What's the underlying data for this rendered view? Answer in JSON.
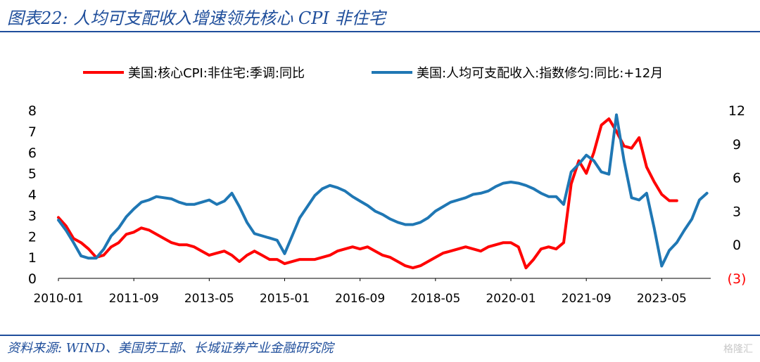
{
  "header": {
    "title": "图表22:  人均可支配收入增速领先核心 CPI 非住宅"
  },
  "footer": {
    "source": "资料来源:  WIND、美国劳工部、长城证券产业金融研究院",
    "watermark": "格隆汇"
  },
  "chart_data": {
    "type": "line",
    "legend_position": "top",
    "grid": false,
    "x_tick_labels": [
      "2010-01",
      "2011-09",
      "2013-05",
      "2015-01",
      "2016-09",
      "2018-05",
      "2020-01",
      "2021-09",
      "2023-05"
    ],
    "left_axis": {
      "ylim": [
        0,
        8
      ],
      "ticks": [
        "0",
        "1",
        "2",
        "3",
        "4",
        "5",
        "6",
        "7",
        "8"
      ]
    },
    "right_axis": {
      "ylim": [
        -3,
        12
      ],
      "ticks": [
        "(3)",
        "0",
        "3",
        "6",
        "9",
        "12"
      ],
      "negative_color": "#ff0000"
    },
    "series": [
      {
        "name": "美国:核心CPI:非住宅:季调:同比",
        "color": "#ff0000",
        "axis": "left",
        "points": [
          [
            "2010-01",
            2.9
          ],
          [
            "2010-03",
            2.5
          ],
          [
            "2010-05",
            1.9
          ],
          [
            "2010-07",
            1.7
          ],
          [
            "2010-09",
            1.4
          ],
          [
            "2010-11",
            1.0
          ],
          [
            "2011-01",
            1.1
          ],
          [
            "2011-03",
            1.5
          ],
          [
            "2011-05",
            1.7
          ],
          [
            "2011-07",
            2.1
          ],
          [
            "2011-09",
            2.2
          ],
          [
            "2011-11",
            2.4
          ],
          [
            "2012-01",
            2.3
          ],
          [
            "2012-03",
            2.1
          ],
          [
            "2012-05",
            1.9
          ],
          [
            "2012-07",
            1.7
          ],
          [
            "2012-09",
            1.6
          ],
          [
            "2012-11",
            1.6
          ],
          [
            "2013-01",
            1.5
          ],
          [
            "2013-03",
            1.3
          ],
          [
            "2013-05",
            1.1
          ],
          [
            "2013-07",
            1.2
          ],
          [
            "2013-09",
            1.3
          ],
          [
            "2013-11",
            1.1
          ],
          [
            "2014-01",
            0.8
          ],
          [
            "2014-03",
            1.1
          ],
          [
            "2014-05",
            1.3
          ],
          [
            "2014-07",
            1.1
          ],
          [
            "2014-09",
            0.9
          ],
          [
            "2014-11",
            0.9
          ],
          [
            "2015-01",
            0.7
          ],
          [
            "2015-03",
            0.8
          ],
          [
            "2015-05",
            0.9
          ],
          [
            "2015-07",
            0.9
          ],
          [
            "2015-09",
            0.9
          ],
          [
            "2015-11",
            1.0
          ],
          [
            "2016-01",
            1.1
          ],
          [
            "2016-03",
            1.3
          ],
          [
            "2016-05",
            1.4
          ],
          [
            "2016-07",
            1.5
          ],
          [
            "2016-09",
            1.4
          ],
          [
            "2016-11",
            1.5
          ],
          [
            "2017-01",
            1.3
          ],
          [
            "2017-03",
            1.1
          ],
          [
            "2017-05",
            1.0
          ],
          [
            "2017-07",
            0.8
          ],
          [
            "2017-09",
            0.6
          ],
          [
            "2017-11",
            0.5
          ],
          [
            "2018-01",
            0.6
          ],
          [
            "2018-03",
            0.8
          ],
          [
            "2018-05",
            1.0
          ],
          [
            "2018-07",
            1.2
          ],
          [
            "2018-09",
            1.3
          ],
          [
            "2018-11",
            1.4
          ],
          [
            "2019-01",
            1.5
          ],
          [
            "2019-03",
            1.4
          ],
          [
            "2019-05",
            1.3
          ],
          [
            "2019-07",
            1.5
          ],
          [
            "2019-09",
            1.6
          ],
          [
            "2019-11",
            1.7
          ],
          [
            "2020-01",
            1.7
          ],
          [
            "2020-03",
            1.5
          ],
          [
            "2020-05",
            0.5
          ],
          [
            "2020-07",
            0.9
          ],
          [
            "2020-09",
            1.4
          ],
          [
            "2020-11",
            1.5
          ],
          [
            "2021-01",
            1.4
          ],
          [
            "2021-03",
            1.7
          ],
          [
            "2021-05",
            4.5
          ],
          [
            "2021-07",
            5.6
          ],
          [
            "2021-09",
            5.0
          ],
          [
            "2021-11",
            6.0
          ],
          [
            "2022-01",
            7.3
          ],
          [
            "2022-03",
            7.6
          ],
          [
            "2022-05",
            7.0
          ],
          [
            "2022-07",
            6.3
          ],
          [
            "2022-09",
            6.2
          ],
          [
            "2022-11",
            6.7
          ],
          [
            "2023-01",
            5.3
          ],
          [
            "2023-03",
            4.6
          ],
          [
            "2023-05",
            4.0
          ],
          [
            "2023-07",
            3.7
          ],
          [
            "2023-09",
            3.7
          ]
        ]
      },
      {
        "name": "美国:人均可支配收入:指数修匀:同比:+12月",
        "color": "#1f77b4",
        "axis": "right",
        "points": [
          [
            "2010-01",
            2.2
          ],
          [
            "2010-03",
            1.3
          ],
          [
            "2010-05",
            0.2
          ],
          [
            "2010-07",
            -1.0
          ],
          [
            "2010-09",
            -1.2
          ],
          [
            "2010-11",
            -1.2
          ],
          [
            "2011-01",
            -0.4
          ],
          [
            "2011-03",
            0.8
          ],
          [
            "2011-05",
            1.5
          ],
          [
            "2011-07",
            2.5
          ],
          [
            "2011-09",
            3.2
          ],
          [
            "2011-11",
            3.8
          ],
          [
            "2012-01",
            4.0
          ],
          [
            "2012-03",
            4.3
          ],
          [
            "2012-05",
            4.2
          ],
          [
            "2012-07",
            4.1
          ],
          [
            "2012-09",
            3.8
          ],
          [
            "2012-11",
            3.6
          ],
          [
            "2013-01",
            3.6
          ],
          [
            "2013-03",
            3.8
          ],
          [
            "2013-05",
            4.0
          ],
          [
            "2013-07",
            3.6
          ],
          [
            "2013-09",
            3.9
          ],
          [
            "2013-11",
            4.6
          ],
          [
            "2014-01",
            3.4
          ],
          [
            "2014-03",
            2.0
          ],
          [
            "2014-05",
            1.0
          ],
          [
            "2014-07",
            0.8
          ],
          [
            "2014-09",
            0.6
          ],
          [
            "2014-11",
            0.4
          ],
          [
            "2015-01",
            -0.8
          ],
          [
            "2015-03",
            0.8
          ],
          [
            "2015-05",
            2.4
          ],
          [
            "2015-07",
            3.4
          ],
          [
            "2015-09",
            4.4
          ],
          [
            "2015-11",
            5.0
          ],
          [
            "2016-01",
            5.3
          ],
          [
            "2016-03",
            5.1
          ],
          [
            "2016-05",
            4.8
          ],
          [
            "2016-07",
            4.3
          ],
          [
            "2016-09",
            3.9
          ],
          [
            "2016-11",
            3.5
          ],
          [
            "2017-01",
            3.0
          ],
          [
            "2017-03",
            2.7
          ],
          [
            "2017-05",
            2.3
          ],
          [
            "2017-07",
            2.0
          ],
          [
            "2017-09",
            1.8
          ],
          [
            "2017-11",
            1.8
          ],
          [
            "2018-01",
            2.0
          ],
          [
            "2018-03",
            2.4
          ],
          [
            "2018-05",
            3.0
          ],
          [
            "2018-07",
            3.4
          ],
          [
            "2018-09",
            3.8
          ],
          [
            "2018-11",
            4.0
          ],
          [
            "2019-01",
            4.2
          ],
          [
            "2019-03",
            4.5
          ],
          [
            "2019-05",
            4.6
          ],
          [
            "2019-07",
            4.8
          ],
          [
            "2019-09",
            5.2
          ],
          [
            "2019-11",
            5.5
          ],
          [
            "2020-01",
            5.6
          ],
          [
            "2020-03",
            5.5
          ],
          [
            "2020-05",
            5.3
          ],
          [
            "2020-07",
            5.0
          ],
          [
            "2020-09",
            4.6
          ],
          [
            "2020-11",
            4.3
          ],
          [
            "2021-01",
            4.3
          ],
          [
            "2021-03",
            3.6
          ],
          [
            "2021-05",
            6.5
          ],
          [
            "2021-07",
            7.2
          ],
          [
            "2021-09",
            8.0
          ],
          [
            "2021-11",
            7.5
          ],
          [
            "2022-01",
            6.5
          ],
          [
            "2022-03",
            6.3
          ],
          [
            "2022-05",
            11.6
          ],
          [
            "2022-07",
            7.5
          ],
          [
            "2022-09",
            4.2
          ],
          [
            "2022-11",
            4.0
          ],
          [
            "2023-01",
            4.6
          ],
          [
            "2023-03",
            1.5
          ],
          [
            "2023-05",
            -1.9
          ],
          [
            "2023-07",
            -0.5
          ],
          [
            "2023-09",
            0.2
          ],
          [
            "2023-11",
            1.3
          ],
          [
            "2024-01",
            2.3
          ],
          [
            "2024-03",
            4.0
          ],
          [
            "2024-05",
            4.6
          ]
        ]
      }
    ]
  }
}
